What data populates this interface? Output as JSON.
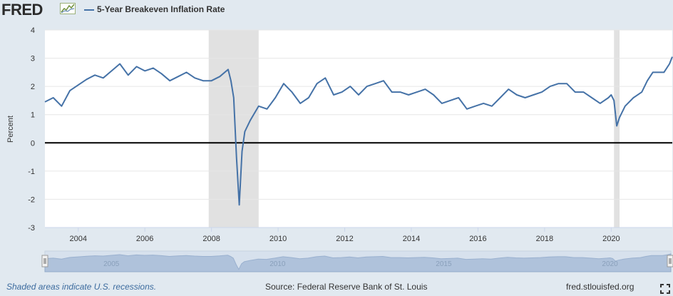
{
  "header": {
    "logo_text": "FRED",
    "logo_icon": "line-chart-icon",
    "legend_label": "5-Year Breakeven Inflation Rate",
    "series_color": "#4572a7"
  },
  "footer": {
    "recession_note": "Shaded areas indicate U.S. recessions.",
    "source": "Source: Federal Reserve Bank of St. Louis",
    "site": "fred.stlouisfed.org",
    "fullscreen_icon": "fullscreen-expand-icon"
  },
  "navigator": {
    "labels": [
      "2005",
      "2010",
      "2015",
      "2020"
    ],
    "handle_icon": "drag-handle-icon"
  },
  "chart_data": {
    "type": "line",
    "ylabel": "Percent",
    "xlim": [
      "2003-01",
      "2021-11"
    ],
    "ylim": [
      -3,
      4
    ],
    "y_ticks": [
      -3,
      -2,
      -1,
      0,
      1,
      2,
      3,
      4
    ],
    "x_ticks": [
      "2004",
      "2006",
      "2008",
      "2010",
      "2012",
      "2014",
      "2016",
      "2018",
      "2020"
    ],
    "grid": "horizontal",
    "zero_line": true,
    "legend": "top-left",
    "recessions": [
      [
        "2007-12",
        "2009-06"
      ],
      [
        "2020-02",
        "2020-04"
      ]
    ],
    "recession_color": "#e1e1e1",
    "series": [
      {
        "name": "5-Year Breakeven Inflation Rate",
        "color": "#4572a7",
        "x": [
          "2003-01",
          "2003-04",
          "2003-07",
          "2003-10",
          "2004-01",
          "2004-04",
          "2004-07",
          "2004-10",
          "2005-01",
          "2005-04",
          "2005-07",
          "2005-10",
          "2006-01",
          "2006-04",
          "2006-07",
          "2006-10",
          "2007-01",
          "2007-04",
          "2007-07",
          "2007-10",
          "2008-01",
          "2008-04",
          "2008-07",
          "2008-08",
          "2008-09",
          "2008-10",
          "2008-11",
          "2008-12",
          "2009-01",
          "2009-03",
          "2009-06",
          "2009-09",
          "2009-12",
          "2010-03",
          "2010-06",
          "2010-09",
          "2010-12",
          "2011-03",
          "2011-06",
          "2011-09",
          "2011-12",
          "2012-03",
          "2012-06",
          "2012-09",
          "2012-12",
          "2013-03",
          "2013-06",
          "2013-09",
          "2013-12",
          "2014-03",
          "2014-06",
          "2014-09",
          "2014-12",
          "2015-03",
          "2015-06",
          "2015-09",
          "2015-12",
          "2016-03",
          "2016-06",
          "2016-09",
          "2016-12",
          "2017-03",
          "2017-06",
          "2017-09",
          "2017-12",
          "2018-03",
          "2018-06",
          "2018-09",
          "2018-12",
          "2019-03",
          "2019-06",
          "2019-09",
          "2019-12",
          "2020-01",
          "2020-02",
          "2020-03",
          "2020-04",
          "2020-06",
          "2020-09",
          "2020-12",
          "2021-02",
          "2021-04",
          "2021-06",
          "2021-08",
          "2021-10",
          "2021-11"
        ],
        "values": [
          1.45,
          1.6,
          1.3,
          1.85,
          2.05,
          2.25,
          2.4,
          2.3,
          2.55,
          2.8,
          2.4,
          2.7,
          2.55,
          2.65,
          2.45,
          2.2,
          2.35,
          2.5,
          2.3,
          2.2,
          2.2,
          2.35,
          2.6,
          2.2,
          1.6,
          -0.5,
          -2.2,
          -0.3,
          0.4,
          0.8,
          1.3,
          1.2,
          1.6,
          2.1,
          1.8,
          1.4,
          1.6,
          2.1,
          2.3,
          1.7,
          1.8,
          2.0,
          1.7,
          2.0,
          2.1,
          2.2,
          1.8,
          1.8,
          1.7,
          1.8,
          1.9,
          1.7,
          1.4,
          1.5,
          1.6,
          1.2,
          1.3,
          1.4,
          1.3,
          1.6,
          1.9,
          1.7,
          1.6,
          1.7,
          1.8,
          2.0,
          2.1,
          2.1,
          1.8,
          1.8,
          1.6,
          1.4,
          1.6,
          1.7,
          1.5,
          0.6,
          0.9,
          1.3,
          1.6,
          1.8,
          2.2,
          2.5,
          2.5,
          2.5,
          2.8,
          3.05
        ]
      }
    ]
  }
}
